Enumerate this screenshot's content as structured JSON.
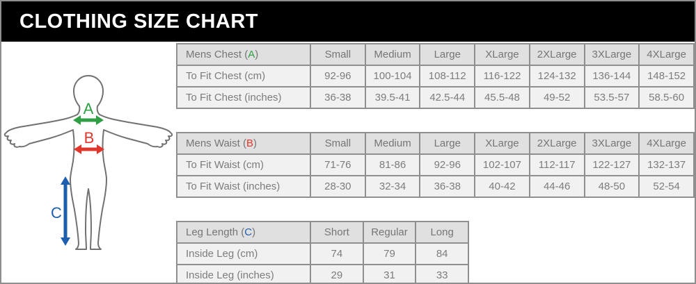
{
  "title": "CLOTHING SIZE CHART",
  "colors": {
    "chest_accent": "#2f9e44",
    "waist_accent": "#e2352b",
    "leg_accent": "#1d5fae",
    "table_border": "#8f8f8f",
    "header_bg": "#e0e0e0",
    "row_bg": "#f1f1f1",
    "title_bg": "#000000",
    "title_text": "#ffffff",
    "text_gray": "#7c7c7c"
  },
  "figure": {
    "chest_label": "A",
    "waist_label": "B",
    "leg_label": "C"
  },
  "chart_data": [
    {
      "type": "table",
      "name": "Mens Chest",
      "letter": "A",
      "accent": "#2f9e44",
      "columns": [
        "Small",
        "Medium",
        "Large",
        "XLarge",
        "2XLarge",
        "3XLarge",
        "4XLarge"
      ],
      "rows": [
        {
          "label": "To Fit Chest (cm)",
          "values": [
            "92-96",
            "100-104",
            "108-112",
            "116-122",
            "124-132",
            "136-144",
            "148-152"
          ]
        },
        {
          "label": "To Fit Chest (inches)",
          "values": [
            "36-38",
            "39.5-41",
            "42.5-44",
            "45.5-48",
            "49-52",
            "53.5-57",
            "58.5-60"
          ]
        }
      ]
    },
    {
      "type": "table",
      "name": "Mens Waist",
      "letter": "B",
      "accent": "#e2352b",
      "columns": [
        "Small",
        "Medium",
        "Large",
        "XLarge",
        "2XLarge",
        "3XLarge",
        "4XLarge"
      ],
      "rows": [
        {
          "label": "To Fit Waist (cm)",
          "values": [
            "71-76",
            "81-86",
            "92-96",
            "102-107",
            "112-117",
            "122-127",
            "132-137"
          ]
        },
        {
          "label": "To Fit Waist (inches)",
          "values": [
            "28-30",
            "32-34",
            "36-38",
            "40-42",
            "44-46",
            "48-50",
            "52-54"
          ]
        }
      ]
    },
    {
      "type": "table",
      "name": "Leg Length",
      "letter": "C",
      "accent": "#1d5fae",
      "columns": [
        "Short",
        "Regular",
        "Long"
      ],
      "rows": [
        {
          "label": "Inside Leg (cm)",
          "values": [
            "74",
            "79",
            "84"
          ]
        },
        {
          "label": "Inside Leg (inches)",
          "values": [
            "29",
            "31",
            "33"
          ]
        }
      ]
    }
  ]
}
